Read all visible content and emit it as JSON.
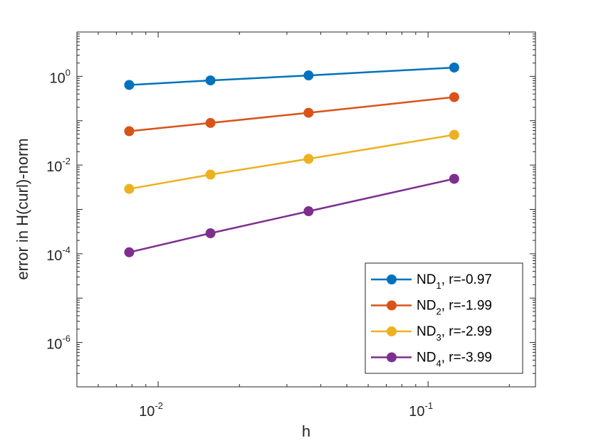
{
  "chart_data": {
    "type": "line",
    "title": "",
    "xlabel": "h",
    "ylabel": "error in H(curl)-norm",
    "xscale": "log",
    "yscale": "log",
    "xlim": [
      0.005,
      0.25
    ],
    "ylim": [
      1e-07,
      10
    ],
    "grid": false,
    "legend_position": "bottom-right",
    "x_ticks": [
      {
        "value": 0.01,
        "base": "10",
        "exp": "-2"
      },
      {
        "value": 0.1,
        "base": "10",
        "exp": "-1"
      }
    ],
    "y_ticks": [
      {
        "value": 1,
        "base": "10",
        "exp": "0"
      },
      {
        "value": 0.01,
        "base": "10",
        "exp": "-2"
      },
      {
        "value": 0.0001,
        "base": "10",
        "exp": "-4"
      },
      {
        "value": 1e-06,
        "base": "10",
        "exp": "-6"
      }
    ],
    "x": [
      0.0078125,
      0.015625,
      0.0360844,
      0.125
    ],
    "series": [
      {
        "name": "ND",
        "sub": "1",
        "rate": ", r=-0.97",
        "color": "#0072BD",
        "values": [
          0.64,
          0.81,
          1.05,
          1.58
        ]
      },
      {
        "name": "ND",
        "sub": "2",
        "rate": ", r=-1.99",
        "color": "#D95319",
        "values": [
          0.058,
          0.089,
          0.151,
          0.34
        ]
      },
      {
        "name": "ND",
        "sub": "3",
        "rate": ", r=-2.99",
        "color": "#EDB120",
        "values": [
          0.0029,
          0.0061,
          0.0138,
          0.048
        ]
      },
      {
        "name": "ND",
        "sub": "4",
        "rate": ", r=-3.99",
        "color": "#7E2F8E",
        "values": [
          0.000108,
          0.00029,
          0.00091,
          0.0049
        ]
      }
    ]
  }
}
